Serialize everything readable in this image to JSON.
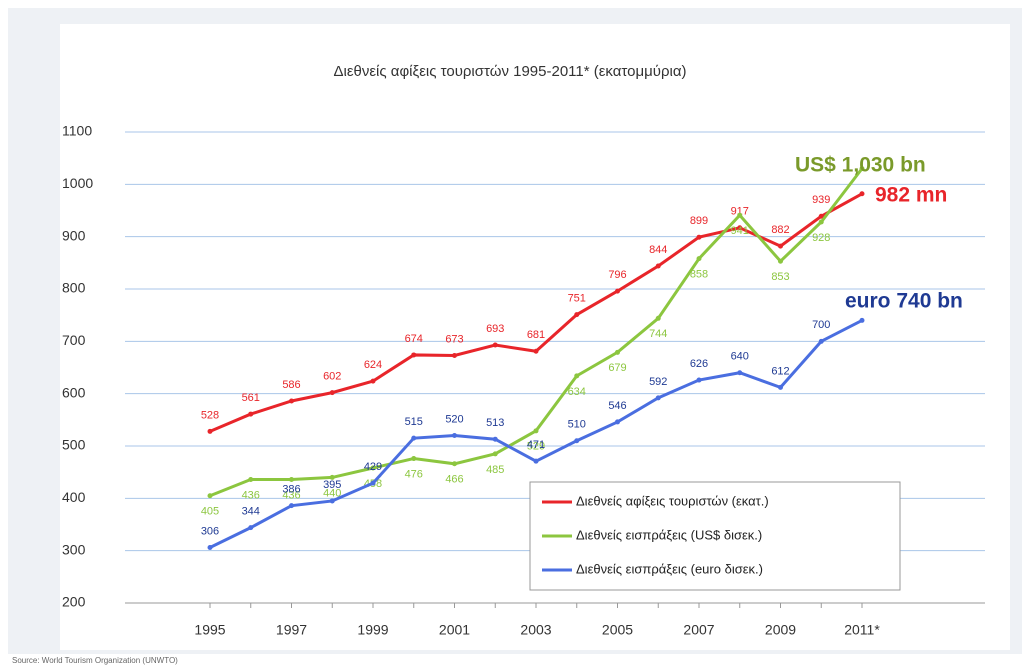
{
  "chart_data": {
    "type": "line",
    "title": "Διεθνείς αφίξεις τουριστών 1995-2011* (εκατομμύρια)",
    "source": "Source: World Tourism Organization (UNWTO)",
    "categories": [
      "1995",
      null,
      "1997",
      null,
      "1999",
      null,
      "2001",
      null,
      "2003",
      null,
      "2005",
      null,
      "2007",
      null,
      "2009",
      null,
      "2011*"
    ],
    "ylim": [
      200,
      1100
    ],
    "yticks": [
      200,
      300,
      400,
      500,
      600,
      700,
      800,
      900,
      1000,
      1100
    ],
    "grid": true,
    "series": [
      {
        "name": "Διεθνείς αφίξεις τουριστών (εκατ.)",
        "color": "#e8252a",
        "values": [
          528,
          561,
          586,
          602,
          624,
          674,
          673,
          693,
          681,
          751,
          796,
          844,
          899,
          917,
          882,
          939,
          982
        ]
      },
      {
        "name": "Διεθνείς εισπράξεις (US$ δισεκ.)",
        "color": "#8cc63f",
        "values": [
          405,
          436,
          436,
          440,
          458,
          476,
          466,
          485,
          529,
          634,
          679,
          744,
          858,
          941,
          853,
          928,
          1030
        ]
      },
      {
        "name": "Διεθνείς εισπράξεις (euro δισεκ.)",
        "color": "#4a6ee0",
        "values": [
          306,
          344,
          386,
          395,
          429,
          515,
          520,
          513,
          471,
          510,
          546,
          592,
          626,
          640,
          612,
          700,
          740
        ]
      }
    ],
    "annotations": [
      {
        "text": "982 mn",
        "color": "#e8252a"
      },
      {
        "text": "US$ 1,030 bn",
        "color": "#7a9a2a"
      },
      {
        "text": "euro 740 bn",
        "color": "#1f3a93"
      }
    ]
  }
}
